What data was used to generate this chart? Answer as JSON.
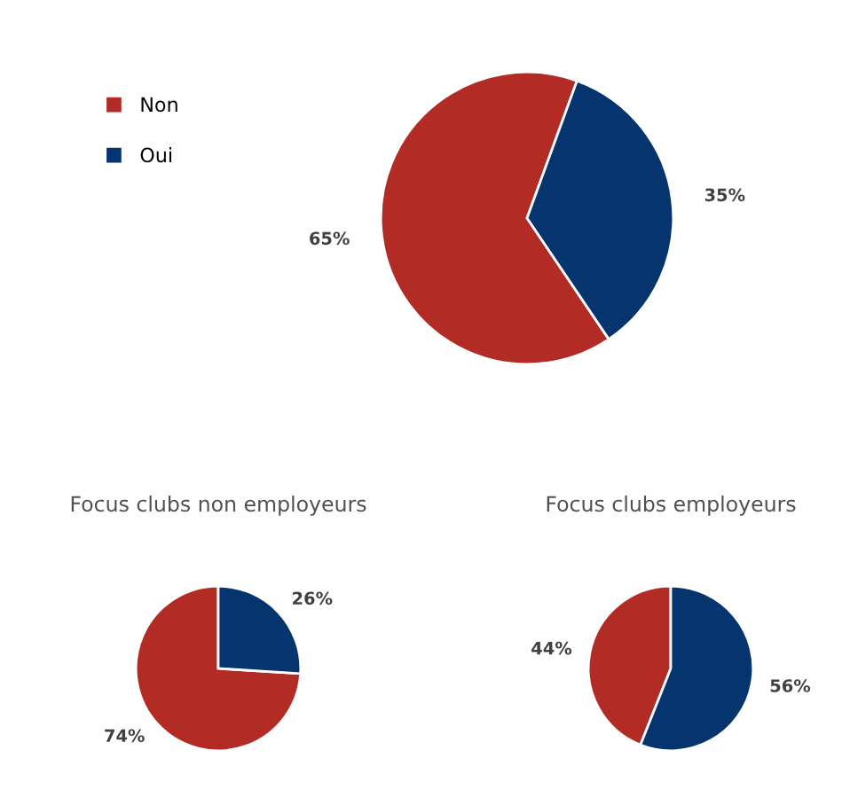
{
  "chart_data": [
    {
      "type": "pie",
      "categories": [
        "Non",
        "Oui"
      ],
      "values": [
        65,
        35
      ],
      "colors": [
        "#b22b25",
        "#06346e"
      ],
      "value_labels": [
        "65%",
        "35%"
      ],
      "legend": "top left"
    },
    {
      "type": "pie",
      "title": "Focus clubs non employeurs",
      "categories": [
        null,
        null
      ],
      "values": [
        74,
        26
      ],
      "colors": [
        "#b22b25",
        "#06346e"
      ],
      "value_labels": [
        "74%",
        "26%"
      ]
    },
    {
      "type": "pie",
      "title": "Focus clubs employeurs",
      "categories": [
        null,
        null
      ],
      "values": [
        44,
        56
      ],
      "colors": [
        "#b22b25",
        "#06346e"
      ],
      "value_labels": [
        "44%",
        "56%"
      ]
    }
  ]
}
